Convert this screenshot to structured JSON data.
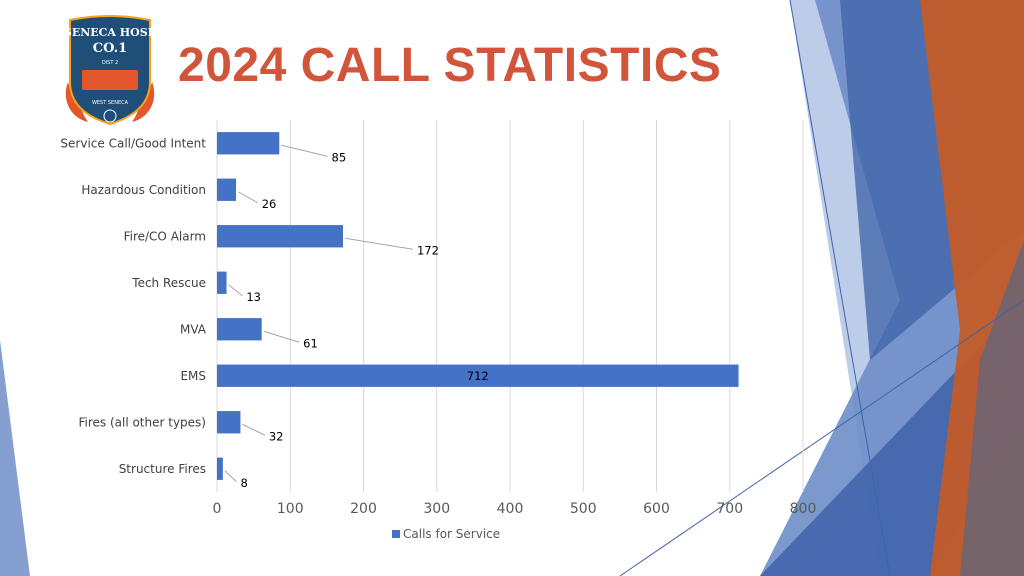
{
  "slide": {
    "title": "2024 CALL STATISTICS",
    "title_color": "#d1553b"
  },
  "logo": {
    "line1": "SENECA HOSE",
    "line2": "CO.1",
    "badge_small": "DIST 2",
    "bottom_text": "WEST SENECA",
    "colors": {
      "shield": "#1f4e79",
      "flame": "#e2572b",
      "flame_light": "#f7a21b",
      "text": "#ffffff"
    }
  },
  "theme": {
    "blue_dark": "#3e63a8",
    "blue_mid": "#6e8ec8",
    "blue_light": "#b6c7e6",
    "orange": "#c55a24",
    "grey": "#6a6575"
  },
  "chart_data": {
    "type": "bar",
    "orientation": "horizontal",
    "categories": [
      "Service Call/Good Intent",
      "Hazardous Condition",
      "Fire/CO Alarm",
      "Tech Rescue",
      "MVA",
      "EMS",
      "Fires (all other types)",
      "Structure Fires"
    ],
    "series": [
      {
        "name": "Calls for Service",
        "color": "#4472c4",
        "values": [
          85,
          26,
          172,
          13,
          61,
          712,
          32,
          8
        ]
      }
    ],
    "xlim": [
      0,
      800
    ],
    "xticks": [
      0,
      100,
      200,
      300,
      400,
      500,
      600,
      700,
      800
    ],
    "grid": true,
    "legend_position": "bottom",
    "data_labels": true
  }
}
